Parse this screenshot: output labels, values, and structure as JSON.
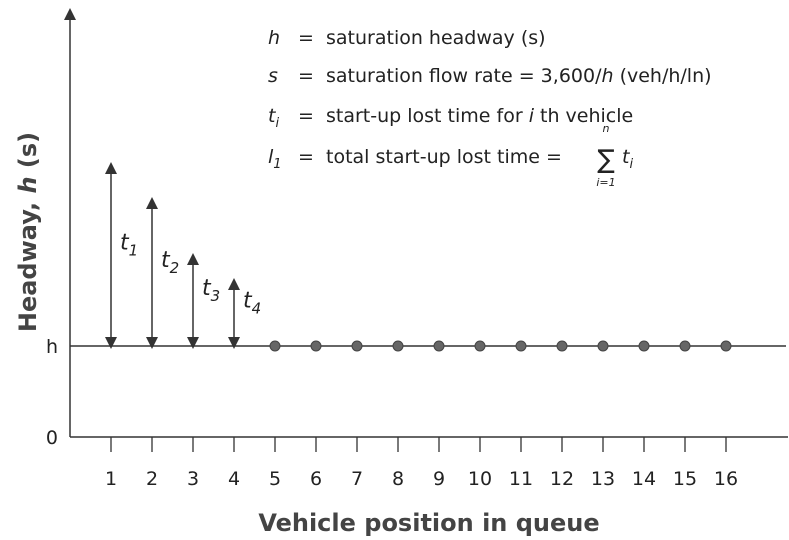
{
  "y_axis": {
    "label_prefix": "Headway, ",
    "label_symbol": "h",
    "label_suffix": " (s)",
    "ticks": [
      "h",
      "0"
    ]
  },
  "x_axis": {
    "label": "Vehicle position in queue",
    "ticks": [
      "1",
      "2",
      "3",
      "4",
      "5",
      "6",
      "7",
      "8",
      "9",
      "10",
      "11",
      "12",
      "13",
      "14",
      "15",
      "16"
    ]
  },
  "arrows": [
    {
      "symbol": "t",
      "subscript": "1"
    },
    {
      "symbol": "t",
      "subscript": "2"
    },
    {
      "symbol": "t",
      "subscript": "3"
    },
    {
      "symbol": "t",
      "subscript": "4"
    }
  ],
  "legend": [
    {
      "symbol": "h",
      "equals": "=",
      "parts": [
        "saturation headway (s)"
      ]
    },
    {
      "symbol": "s",
      "equals": "=",
      "parts": [
        "saturation flow rate = 3,600/",
        "h",
        " (veh/h/ln)"
      ]
    },
    {
      "symbol": "t",
      "subscript": "i",
      "equals": "=",
      "parts": [
        "start-up lost time for ",
        "i",
        " th vehicle"
      ]
    },
    {
      "symbol": "l",
      "subscript": "1",
      "equals": "=",
      "parts": [
        "total start-up lost time = "
      ],
      "sum": {
        "sign": "∑",
        "upper": "n",
        "lower": "i=1",
        "term": "t",
        "term_subscript": "i"
      }
    }
  ]
}
